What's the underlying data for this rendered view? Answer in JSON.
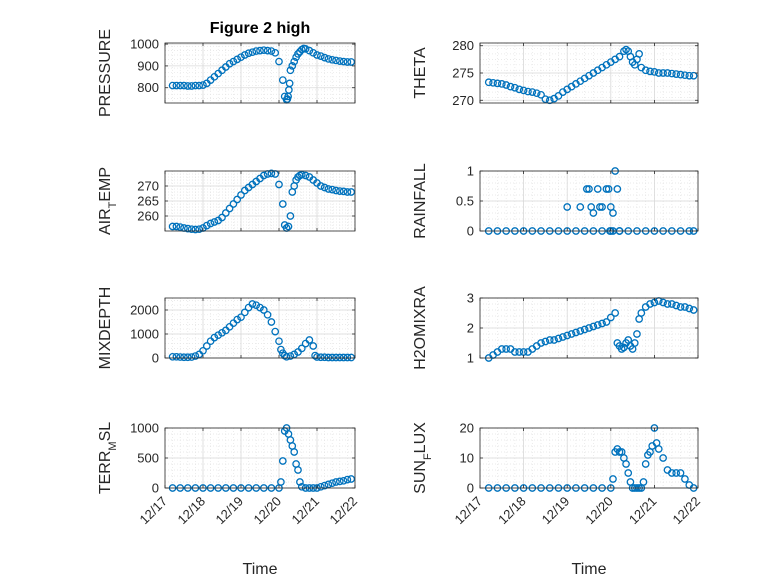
{
  "figure_title": "Figure 2 high",
  "marker_color": "#0072BD",
  "chart_data": [
    {
      "type": "scatter",
      "id": "pressure",
      "title": "Figure 2 high",
      "ylabel": "PRESSURE",
      "xlabel": "",
      "xlim": [
        0,
        5
      ],
      "ylim": [
        730,
        1005
      ],
      "yticks": [
        800,
        900,
        1000
      ],
      "x_tick_labels": [],
      "grid": true,
      "x": [
        0.2,
        0.3,
        0.4,
        0.5,
        0.6,
        0.7,
        0.8,
        0.9,
        1.0,
        1.1,
        1.2,
        1.3,
        1.4,
        1.5,
        1.6,
        1.7,
        1.8,
        1.9,
        2.0,
        2.1,
        2.2,
        2.3,
        2.4,
        2.5,
        2.6,
        2.7,
        2.8,
        2.9,
        3.0,
        3.1,
        3.15,
        3.2,
        3.22,
        3.24,
        3.26,
        3.28,
        3.3,
        3.35,
        3.4,
        3.45,
        3.5,
        3.55,
        3.6,
        3.65,
        3.7,
        3.8,
        3.9,
        4.0,
        4.1,
        4.2,
        4.3,
        4.4,
        4.5,
        4.6,
        4.7,
        4.8,
        4.9
      ],
      "y": [
        810,
        810,
        810,
        810,
        808,
        808,
        810,
        810,
        812,
        820,
        835,
        850,
        865,
        880,
        895,
        910,
        920,
        930,
        940,
        950,
        958,
        963,
        968,
        970,
        972,
        970,
        968,
        960,
        920,
        835,
        760,
        745,
        748,
        760,
        790,
        820,
        880,
        900,
        920,
        940,
        955,
        965,
        975,
        980,
        978,
        970,
        960,
        950,
        945,
        938,
        932,
        928,
        925,
        922,
        920,
        918,
        918
      ]
    },
    {
      "type": "scatter",
      "id": "theta",
      "ylabel": "THETA",
      "xlabel": "",
      "xlim": [
        0,
        5
      ],
      "ylim": [
        269.5,
        280.5
      ],
      "yticks": [
        270,
        275,
        280
      ],
      "x_tick_labels": [],
      "grid": true,
      "x": [
        0.2,
        0.3,
        0.4,
        0.5,
        0.6,
        0.7,
        0.8,
        0.9,
        1.0,
        1.1,
        1.2,
        1.3,
        1.4,
        1.5,
        1.6,
        1.7,
        1.8,
        1.9,
        2.0,
        2.1,
        2.2,
        2.3,
        2.4,
        2.5,
        2.6,
        2.7,
        2.8,
        2.9,
        3.0,
        3.1,
        3.2,
        3.3,
        3.35,
        3.4,
        3.45,
        3.5,
        3.55,
        3.6,
        3.65,
        3.7,
        3.8,
        3.9,
        4.0,
        4.1,
        4.2,
        4.3,
        4.4,
        4.5,
        4.6,
        4.7,
        4.8,
        4.9
      ],
      "y": [
        273.3,
        273.2,
        273.1,
        273.0,
        272.8,
        272.5,
        272.3,
        272.0,
        271.8,
        271.6,
        271.5,
        271.3,
        271.0,
        270.2,
        270.0,
        270.3,
        270.8,
        271.5,
        272.0,
        272.5,
        273.0,
        273.5,
        274.0,
        274.5,
        275.0,
        275.5,
        276.0,
        276.5,
        277.0,
        277.5,
        278.0,
        279.0,
        279.3,
        279.0,
        278.0,
        277.0,
        276.5,
        277.5,
        278.5,
        276.0,
        275.5,
        275.3,
        275.2,
        275.0,
        275.0,
        275.0,
        274.9,
        274.8,
        274.7,
        274.6,
        274.5,
        274.5
      ]
    },
    {
      "type": "scatter",
      "id": "air_temp",
      "ylabel": "AIR_TEMP",
      "xlabel": "",
      "xlim": [
        0,
        5
      ],
      "ylim": [
        255,
        275
      ],
      "yticks": [
        260,
        265,
        270
      ],
      "x_tick_labels": [],
      "grid": true,
      "x": [
        0.2,
        0.3,
        0.4,
        0.5,
        0.6,
        0.7,
        0.8,
        0.9,
        1.0,
        1.1,
        1.2,
        1.3,
        1.4,
        1.5,
        1.6,
        1.7,
        1.8,
        1.9,
        2.0,
        2.1,
        2.2,
        2.3,
        2.4,
        2.5,
        2.6,
        2.7,
        2.8,
        2.9,
        3.0,
        3.1,
        3.15,
        3.2,
        3.25,
        3.3,
        3.35,
        3.4,
        3.45,
        3.5,
        3.55,
        3.6,
        3.7,
        3.8,
        3.9,
        4.0,
        4.1,
        4.2,
        4.3,
        4.4,
        4.5,
        4.6,
        4.7,
        4.8,
        4.9
      ],
      "y": [
        256.5,
        256.5,
        256.3,
        256.0,
        255.8,
        255.6,
        255.5,
        255.6,
        256.0,
        256.8,
        257.5,
        258.0,
        258.5,
        259.5,
        261.0,
        262.5,
        264.0,
        265.5,
        267.0,
        268.5,
        269.5,
        270.5,
        271.5,
        272.5,
        273.5,
        274.0,
        274.2,
        274.0,
        270.5,
        264.0,
        257.0,
        256.0,
        256.5,
        260.0,
        268.0,
        270.0,
        272.0,
        273.0,
        273.5,
        273.8,
        273.5,
        273.0,
        272.0,
        271.0,
        270.0,
        269.5,
        269.0,
        268.8,
        268.5,
        268.3,
        268.2,
        268.0,
        268.0
      ]
    },
    {
      "type": "scatter",
      "id": "rainfall",
      "ylabel": "RAINFALL",
      "xlabel": "",
      "xlim": [
        0,
        5
      ],
      "ylim": [
        0,
        1
      ],
      "yticks": [
        0,
        0.5,
        1
      ],
      "ytick_labels": [
        "0",
        "0.5",
        "1"
      ],
      "x_tick_labels": [],
      "grid": true,
      "x": [
        0.2,
        0.4,
        0.6,
        0.8,
        1.0,
        1.2,
        1.4,
        1.6,
        1.8,
        2.0,
        2.2,
        2.4,
        2.6,
        2.8,
        3.0,
        3.2,
        3.4,
        3.6,
        3.8,
        4.0,
        4.2,
        4.4,
        4.6,
        4.8,
        4.9,
        2.0,
        2.3,
        2.45,
        2.5,
        2.55,
        2.6,
        2.7,
        2.75,
        2.8,
        2.9,
        2.95,
        3.0,
        3.05,
        3.1,
        3.15,
        3.2,
        3.05,
        2.98
      ],
      "y": [
        0,
        0,
        0,
        0,
        0,
        0,
        0,
        0,
        0,
        0,
        0,
        0,
        0,
        0,
        0,
        0,
        0,
        0,
        0,
        0,
        0,
        0,
        0,
        0,
        0,
        0.4,
        0.4,
        0.7,
        0.7,
        0.4,
        0.3,
        0.7,
        0.4,
        0.4,
        0.7,
        0.7,
        0.4,
        0.3,
        1.0,
        0.7,
        0,
        0,
        0
      ]
    },
    {
      "type": "scatter",
      "id": "mixdepth",
      "ylabel": "MIXDEPTH",
      "xlabel": "",
      "xlim": [
        0,
        5
      ],
      "ylim": [
        0,
        2500
      ],
      "yticks": [
        0,
        1000,
        2000
      ],
      "x_tick_labels": [],
      "grid": true,
      "x": [
        0.2,
        0.3,
        0.4,
        0.5,
        0.6,
        0.7,
        0.8,
        0.9,
        1.0,
        1.1,
        1.2,
        1.3,
        1.4,
        1.5,
        1.6,
        1.7,
        1.8,
        1.9,
        2.0,
        2.1,
        2.2,
        2.3,
        2.4,
        2.5,
        2.6,
        2.7,
        2.8,
        2.9,
        3.0,
        3.05,
        3.1,
        3.15,
        3.2,
        3.3,
        3.4,
        3.5,
        3.6,
        3.7,
        3.8,
        3.9,
        3.95,
        4.0,
        4.1,
        4.2,
        4.3,
        4.4,
        4.5,
        4.6,
        4.7,
        4.8,
        4.9
      ],
      "y": [
        50,
        50,
        40,
        30,
        30,
        40,
        80,
        150,
        300,
        500,
        700,
        850,
        950,
        1050,
        1150,
        1300,
        1450,
        1600,
        1700,
        1900,
        2100,
        2250,
        2200,
        2100,
        2000,
        1800,
        1500,
        1100,
        700,
        350,
        200,
        100,
        50,
        80,
        150,
        250,
        400,
        600,
        750,
        500,
        100,
        40,
        30,
        30,
        20,
        20,
        20,
        20,
        20,
        20,
        20
      ]
    },
    {
      "type": "scatter",
      "id": "h2omixra",
      "ylabel": "H2OMIXRA",
      "xlabel": "",
      "xlim": [
        0,
        5
      ],
      "ylim": [
        1,
        3
      ],
      "yticks": [
        1,
        2,
        3
      ],
      "x_tick_labels": [],
      "grid": true,
      "x": [
        0.2,
        0.3,
        0.4,
        0.5,
        0.6,
        0.7,
        0.8,
        0.9,
        1.0,
        1.1,
        1.2,
        1.3,
        1.4,
        1.5,
        1.6,
        1.7,
        1.8,
        1.9,
        2.0,
        2.1,
        2.2,
        2.3,
        2.4,
        2.5,
        2.6,
        2.7,
        2.8,
        2.9,
        3.0,
        3.1,
        3.15,
        3.2,
        3.25,
        3.3,
        3.35,
        3.4,
        3.45,
        3.5,
        3.55,
        3.6,
        3.65,
        3.7,
        3.8,
        3.9,
        4.0,
        4.1,
        4.2,
        4.3,
        4.4,
        4.5,
        4.6,
        4.7,
        4.8,
        4.9
      ],
      "y": [
        1.0,
        1.1,
        1.2,
        1.3,
        1.3,
        1.3,
        1.2,
        1.2,
        1.2,
        1.2,
        1.3,
        1.4,
        1.5,
        1.55,
        1.6,
        1.6,
        1.65,
        1.7,
        1.75,
        1.8,
        1.85,
        1.9,
        1.95,
        2.0,
        2.05,
        2.1,
        2.15,
        2.2,
        2.35,
        2.5,
        1.5,
        1.4,
        1.3,
        1.35,
        1.5,
        1.6,
        1.4,
        1.3,
        1.5,
        1.8,
        2.3,
        2.5,
        2.7,
        2.8,
        2.85,
        2.9,
        2.85,
        2.8,
        2.8,
        2.75,
        2.7,
        2.7,
        2.65,
        2.6
      ]
    },
    {
      "type": "scatter",
      "id": "terr_msl",
      "ylabel": "TERR_MSL",
      "xlabel": "Time",
      "xlim": [
        0,
        5
      ],
      "ylim": [
        0,
        1000
      ],
      "yticks": [
        0,
        500,
        1000
      ],
      "x_tick_labels": [
        "12/17",
        "12/18",
        "12/19",
        "12/20",
        "12/21",
        "12/22"
      ],
      "grid": true,
      "x": [
        0.2,
        0.4,
        0.6,
        0.8,
        1.0,
        1.2,
        1.4,
        1.6,
        1.8,
        2.0,
        2.2,
        2.4,
        2.6,
        2.8,
        3.0,
        3.05,
        3.1,
        3.15,
        3.2,
        3.25,
        3.3,
        3.35,
        3.4,
        3.45,
        3.5,
        3.55,
        3.6,
        3.7,
        3.8,
        3.9,
        4.0,
        4.1,
        4.2,
        4.3,
        4.4,
        4.5,
        4.6,
        4.7,
        4.8,
        4.9
      ],
      "y": [
        0,
        0,
        0,
        0,
        0,
        0,
        0,
        0,
        0,
        0,
        0,
        0,
        0,
        0,
        0,
        100,
        450,
        950,
        1000,
        900,
        800,
        700,
        600,
        400,
        300,
        100,
        20,
        0,
        0,
        0,
        0,
        20,
        40,
        60,
        80,
        100,
        110,
        120,
        140,
        150
      ]
    },
    {
      "type": "scatter",
      "id": "sun_flux",
      "ylabel": "SUN_FLUX",
      "xlabel": "Time",
      "xlim": [
        0,
        5
      ],
      "ylim": [
        0,
        20
      ],
      "yticks": [
        0,
        10,
        20
      ],
      "x_tick_labels": [
        "12/17",
        "12/18",
        "12/19",
        "12/20",
        "12/21",
        "12/22"
      ],
      "grid": true,
      "x": [
        0.2,
        0.4,
        0.6,
        0.8,
        1.0,
        1.2,
        1.4,
        1.6,
        1.8,
        2.0,
        2.2,
        2.4,
        2.6,
        2.8,
        3.0,
        3.05,
        3.1,
        3.15,
        3.2,
        3.25,
        3.3,
        3.35,
        3.4,
        3.45,
        3.5,
        3.55,
        3.6,
        3.65,
        3.7,
        3.75,
        3.8,
        3.85,
        3.9,
        3.95,
        4.0,
        4.05,
        4.1,
        4.2,
        4.3,
        4.4,
        4.5,
        4.6,
        4.7,
        4.8,
        4.9
      ],
      "y": [
        0,
        0,
        0,
        0,
        0,
        0,
        0,
        0,
        0,
        0,
        0,
        0,
        0,
        0,
        0,
        3,
        12,
        13,
        12,
        12,
        10,
        8,
        5,
        2,
        0,
        0,
        0,
        0,
        0,
        2,
        8,
        11,
        12,
        14,
        20,
        15,
        13,
        10,
        6,
        5,
        5,
        5,
        3,
        1,
        0
      ]
    }
  ]
}
